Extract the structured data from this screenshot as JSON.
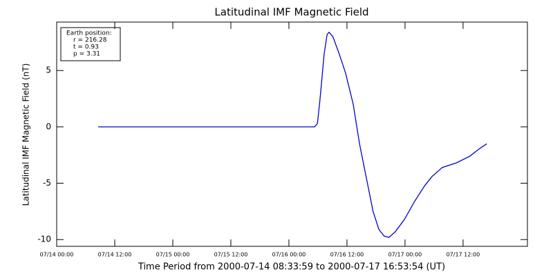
{
  "chart_data": {
    "type": "line",
    "title": "Latitudinal IMF Magnetic Field",
    "xlabel": "Time Period from 2000-07-14 08:33:59 to 2000-07-17 16:53:54 (UT)",
    "ylabel": "Latitudinal IMF Magnetic Field (nT)",
    "annotation": [
      "Earth position:",
      "r = 216.28",
      "t = 0.93",
      "p = 3.31"
    ],
    "x": [
      "07/14 08:34",
      "07/16 05:18",
      "07/16 05:54",
      "07/16 06:24",
      "07/16 07:18",
      "07/16 07:54",
      "07/16 08:18",
      "07/16 09:06",
      "07/16 10:18",
      "07/16 11:42",
      "07/16 13:18",
      "07/16 14:36",
      "07/16 16:00",
      "07/16 17:24",
      "07/16 18:36",
      "07/16 19:42",
      "07/16 20:42",
      "07/16 22:00",
      "07/16 23:54",
      "07/17 02:00",
      "07/17 04:06",
      "07/17 05:36",
      "07/17 07:42",
      "07/17 10:36",
      "07/17 13:24",
      "07/17 15:30",
      "07/17 16:54"
    ],
    "series": [
      {
        "name": "Latitudinal IMF Magnetic Field",
        "color": "#0000cc",
        "values": [
          0,
          0,
          0.3,
          2.3,
          6.5,
          8.2,
          8.4,
          8.0,
          6.6,
          4.8,
          2.0,
          -1.5,
          -4.5,
          -7.5,
          -9.1,
          -9.7,
          -9.8,
          -9.3,
          -8.2,
          -6.6,
          -5.2,
          -4.4,
          -3.6,
          -3.2,
          -2.6,
          -1.9,
          -1.5
        ]
      }
    ],
    "xlim": [
      "07/14 00:00",
      "07/18 01:18"
    ],
    "xticks": [
      "07/14 00:00",
      "07/14 12:00",
      "07/15 00:00",
      "07/15 12:00",
      "07/16 00:00",
      "07/16 12:00",
      "07/17 00:00",
      "07/17 12:00"
    ],
    "ylim": [
      -10.6,
      9.3
    ],
    "yticks": [
      -10,
      -5,
      0,
      5
    ]
  }
}
